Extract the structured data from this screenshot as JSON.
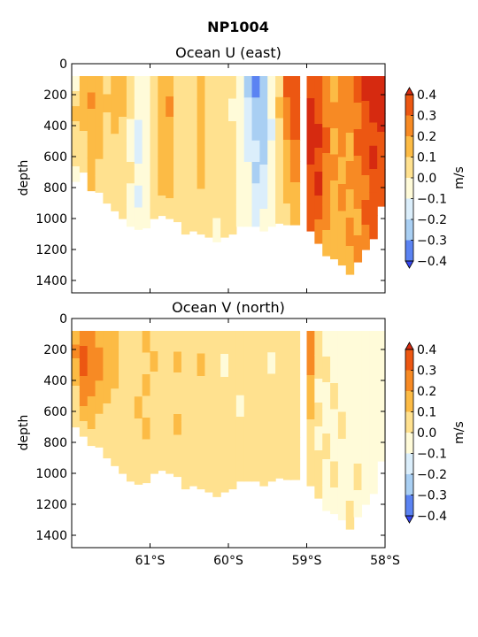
{
  "suptitle": "NP1004",
  "colors": {
    "levels": [
      -0.4,
      -0.3,
      -0.2,
      -0.1,
      0.0,
      0.1,
      0.2,
      0.3,
      0.4
    ],
    "fills": [
      "#3546f0",
      "#5b83f2",
      "#a9cff3",
      "#dbeefb",
      "#fffbd9",
      "#ffe18f",
      "#fcbb45",
      "#f78a24",
      "#ec5712",
      "#d62a10"
    ]
  },
  "colorbar": {
    "label": "m/s",
    "ticks": [
      "0.4",
      "0.3",
      "0.2",
      "0.1",
      "0.0",
      "−0.1",
      "−0.2",
      "−0.3",
      "−0.4"
    ]
  },
  "x_tick_labels": [
    "61°S",
    "60°S",
    "59°S",
    "58°S"
  ],
  "chart_data": [
    {
      "type": "heatmap",
      "title": "Ocean U (east)",
      "xlabel": "",
      "ylabel": "depth",
      "x_domain": [
        -62.0,
        -58.0
      ],
      "ylim": [
        1480,
        0
      ],
      "yticks": [
        "0",
        "200",
        "400",
        "600",
        "800",
        "1000",
        "1200",
        "1400"
      ],
      "columns": [
        {
          "lat": -61.95,
          "max_depth": 760,
          "v": [
            -0.05,
            0.05,
            0.1,
            0.05,
            0.0,
            0.0,
            -0.05
          ]
        },
        {
          "lat": -61.85,
          "max_depth": 700,
          "v": [
            0.15,
            0.1,
            0.15,
            0.1,
            0.05,
            0.05,
            0.05
          ]
        },
        {
          "lat": -61.75,
          "max_depth": 820,
          "v": [
            0.15,
            0.2,
            0.15,
            0.15,
            0.1,
            0.1,
            0.1
          ]
        },
        {
          "lat": -61.65,
          "max_depth": 830,
          "v": [
            0.1,
            0.15,
            0.1,
            0.15,
            0.1,
            0.05,
            0.05
          ]
        },
        {
          "lat": -61.55,
          "max_depth": 900,
          "v": [
            0.05,
            0.1,
            0.05,
            0.05,
            0.05,
            0.0,
            0.05
          ]
        },
        {
          "lat": -61.45,
          "max_depth": 950,
          "v": [
            0.1,
            0.15,
            0.1,
            0.05,
            0.0,
            0.05,
            0.05
          ]
        },
        {
          "lat": -61.35,
          "max_depth": 1000,
          "v": [
            0.15,
            0.1,
            0.05,
            0.05,
            0.05,
            0.0,
            0.0
          ]
        },
        {
          "lat": -61.25,
          "max_depth": 1050,
          "v": [
            0.05,
            0.0,
            -0.05,
            -0.05,
            0.0,
            -0.05,
            -0.05
          ]
        },
        {
          "lat": -61.15,
          "max_depth": 1070,
          "v": [
            -0.05,
            -0.1,
            -0.15,
            -0.15,
            -0.1,
            -0.15,
            -0.1
          ]
        },
        {
          "lat": -61.05,
          "max_depth": 1060,
          "v": [
            -0.05,
            -0.05,
            -0.1,
            -0.05,
            -0.05,
            -0.05,
            -0.05
          ]
        },
        {
          "lat": -60.95,
          "max_depth": 1000,
          "v": [
            0.0,
            0.05,
            0.05,
            0.0,
            0.05,
            0.05,
            0.0
          ]
        },
        {
          "lat": -60.85,
          "max_depth": 980,
          "v": [
            0.1,
            0.15,
            0.15,
            0.15,
            0.15,
            0.1,
            0.05
          ]
        },
        {
          "lat": -60.75,
          "max_depth": 1000,
          "v": [
            0.15,
            0.2,
            0.15,
            0.15,
            0.1,
            0.1,
            0.05
          ]
        },
        {
          "lat": -60.65,
          "max_depth": 1020,
          "v": [
            0.05,
            0.05,
            0.05,
            0.05,
            0.0,
            0.05,
            0.0
          ]
        },
        {
          "lat": -60.55,
          "max_depth": 1100,
          "v": [
            0.0,
            0.05,
            0.0,
            0.05,
            0.05,
            0.0,
            0.0
          ]
        },
        {
          "lat": -60.45,
          "max_depth": 1080,
          "v": [
            0.05,
            0.0,
            0.05,
            0.05,
            0.0,
            0.0,
            0.05
          ]
        },
        {
          "lat": -60.35,
          "max_depth": 1100,
          "v": [
            0.1,
            0.15,
            0.15,
            0.1,
            0.1,
            0.05,
            0.05
          ]
        },
        {
          "lat": -60.25,
          "max_depth": 1120,
          "v": [
            0.05,
            0.05,
            0.0,
            0.05,
            0.0,
            0.0,
            0.0
          ]
        },
        {
          "lat": -60.15,
          "max_depth": 1150,
          "v": [
            0.0,
            0.05,
            0.05,
            0.0,
            0.05,
            0.0,
            -0.05
          ]
        },
        {
          "lat": -60.05,
          "max_depth": 1120,
          "v": [
            0.05,
            0.0,
            0.05,
            0.05,
            0.0,
            0.05,
            0.0
          ]
        },
        {
          "lat": -59.95,
          "max_depth": 1100,
          "v": [
            0.0,
            -0.05,
            0.0,
            0.05,
            0.0,
            0.0,
            0.0
          ]
        },
        {
          "lat": -59.85,
          "max_depth": 1050,
          "v": [
            -0.05,
            -0.1,
            -0.1,
            -0.05,
            -0.05,
            -0.05,
            -0.05
          ]
        },
        {
          "lat": -59.75,
          "max_depth": 1050,
          "v": [
            -0.25,
            -0.2,
            -0.15,
            -0.15,
            -0.1,
            -0.1,
            -0.1
          ]
        },
        {
          "lat": -59.65,
          "max_depth": 1050,
          "v": [
            -0.35,
            -0.3,
            -0.25,
            -0.2,
            -0.25,
            -0.2,
            -0.15
          ]
        },
        {
          "lat": -59.55,
          "max_depth": 1080,
          "v": [
            -0.25,
            -0.25,
            -0.3,
            -0.3,
            -0.2,
            -0.15,
            -0.1
          ]
        },
        {
          "lat": -59.45,
          "max_depth": 1050,
          "v": [
            -0.05,
            -0.1,
            -0.15,
            -0.1,
            -0.05,
            -0.05,
            -0.05
          ]
        },
        {
          "lat": -59.35,
          "max_depth": 1030,
          "v": [
            0.05,
            0.1,
            0.05,
            0.05,
            0.0,
            0.05,
            0.05
          ]
        },
        {
          "lat": -59.25,
          "max_depth": 1040,
          "v": [
            0.3,
            0.25,
            0.2,
            0.15,
            0.1,
            0.1,
            0.05
          ]
        },
        {
          "lat": -59.15,
          "max_depth": 1040,
          "v": [
            0.35,
            0.3,
            0.35,
            0.25,
            0.2,
            0.15,
            0.1
          ]
        },
        {
          "lat": -58.95,
          "max_depth": 1080,
          "v": [
            0.35,
            0.4,
            0.4,
            0.4,
            0.35,
            0.35,
            0.3
          ]
        },
        {
          "lat": -58.85,
          "max_depth": 1160,
          "v": [
            0.3,
            0.35,
            0.4,
            0.35,
            0.4,
            0.35,
            0.25
          ]
        },
        {
          "lat": -58.75,
          "max_depth": 1240,
          "v": [
            0.2,
            0.25,
            0.3,
            0.25,
            0.2,
            0.2,
            0.15
          ]
        },
        {
          "lat": -58.65,
          "max_depth": 1260,
          "v": [
            0.15,
            0.2,
            0.15,
            0.2,
            0.15,
            0.1,
            0.15
          ]
        },
        {
          "lat": -58.55,
          "max_depth": 1300,
          "v": [
            0.2,
            0.25,
            0.2,
            0.15,
            0.2,
            0.15,
            0.1
          ]
        },
        {
          "lat": -58.45,
          "max_depth": 1360,
          "v": [
            0.25,
            0.2,
            0.15,
            0.2,
            0.15,
            0.2,
            0.15
          ]
        },
        {
          "lat": -58.35,
          "max_depth": 1280,
          "v": [
            0.3,
            0.25,
            0.3,
            0.2,
            0.25,
            0.15,
            0.2
          ]
        },
        {
          "lat": -58.25,
          "max_depth": 1200,
          "v": [
            0.4,
            0.35,
            0.3,
            0.3,
            0.25,
            0.3,
            0.25
          ]
        },
        {
          "lat": -58.15,
          "max_depth": 1130,
          "v": [
            0.4,
            0.4,
            0.35,
            0.4,
            0.35,
            0.3,
            0.3
          ]
        },
        {
          "lat": -58.05,
          "max_depth": 920,
          "v": [
            0.4,
            0.4,
            0.4,
            0.35,
            0.3,
            0.3,
            0.3
          ]
        }
      ]
    },
    {
      "type": "heatmap",
      "title": "Ocean V (north)",
      "xlabel": "",
      "ylabel": "depth",
      "x_domain": [
        -62.0,
        -58.0
      ],
      "ylim": [
        1480,
        0
      ],
      "yticks": [
        "0",
        "200",
        "400",
        "600",
        "800",
        "1000",
        "1200",
        "1400"
      ],
      "columns": [
        {
          "lat": -61.95,
          "max_depth": 700,
          "v": [
            0.15,
            0.2,
            0.15,
            0.1,
            0.05,
            0.05,
            0.0
          ]
        },
        {
          "lat": -61.85,
          "max_depth": 760,
          "v": [
            0.25,
            0.3,
            0.3,
            0.25,
            0.2,
            0.1,
            0.05
          ]
        },
        {
          "lat": -61.75,
          "max_depth": 820,
          "v": [
            0.2,
            0.25,
            0.25,
            0.2,
            0.15,
            0.1,
            0.05
          ]
        },
        {
          "lat": -61.65,
          "max_depth": 830,
          "v": [
            0.15,
            0.2,
            0.2,
            0.15,
            0.1,
            0.05,
            0.05
          ]
        },
        {
          "lat": -61.55,
          "max_depth": 900,
          "v": [
            0.1,
            0.15,
            0.1,
            0.1,
            0.05,
            0.05,
            0.05
          ]
        },
        {
          "lat": -61.45,
          "max_depth": 950,
          "v": [
            0.15,
            0.1,
            0.1,
            0.05,
            0.05,
            0.0,
            0.0
          ]
        },
        {
          "lat": -61.35,
          "max_depth": 1000,
          "v": [
            0.05,
            0.05,
            0.05,
            0.0,
            0.05,
            0.0,
            0.0
          ]
        },
        {
          "lat": -61.25,
          "max_depth": 1050,
          "v": [
            0.0,
            0.05,
            0.0,
            0.05,
            0.0,
            0.05,
            0.0
          ]
        },
        {
          "lat": -61.15,
          "max_depth": 1070,
          "v": [
            0.05,
            0.0,
            0.05,
            0.1,
            0.05,
            0.0,
            0.05
          ]
        },
        {
          "lat": -61.05,
          "max_depth": 1060,
          "v": [
            0.1,
            0.05,
            0.1,
            0.05,
            0.1,
            0.05,
            0.0
          ]
        },
        {
          "lat": -60.95,
          "max_depth": 1000,
          "v": [
            0.05,
            0.1,
            0.05,
            0.05,
            0.05,
            0.0,
            0.05
          ]
        },
        {
          "lat": -60.85,
          "max_depth": 980,
          "v": [
            0.0,
            0.05,
            0.05,
            0.0,
            0.05,
            0.05,
            0.0
          ]
        },
        {
          "lat": -60.75,
          "max_depth": 1000,
          "v": [
            0.05,
            0.05,
            0.0,
            0.05,
            0.0,
            0.0,
            0.05
          ]
        },
        {
          "lat": -60.65,
          "max_depth": 1020,
          "v": [
            0.05,
            0.1,
            0.05,
            0.05,
            0.1,
            0.05,
            0.05
          ]
        },
        {
          "lat": -60.55,
          "max_depth": 1100,
          "v": [
            0.0,
            0.05,
            0.05,
            0.05,
            0.0,
            0.05,
            0.0
          ]
        },
        {
          "lat": -60.45,
          "max_depth": 1080,
          "v": [
            0.05,
            0.0,
            0.05,
            0.05,
            0.05,
            0.0,
            0.0
          ]
        },
        {
          "lat": -60.35,
          "max_depth": 1100,
          "v": [
            0.05,
            0.1,
            0.05,
            0.05,
            0.05,
            0.05,
            0.0
          ]
        },
        {
          "lat": -60.25,
          "max_depth": 1120,
          "v": [
            0.0,
            0.05,
            0.0,
            0.05,
            0.0,
            0.0,
            0.05
          ]
        },
        {
          "lat": -60.15,
          "max_depth": 1150,
          "v": [
            0.05,
            0.0,
            0.05,
            0.0,
            0.05,
            0.0,
            0.0
          ]
        },
        {
          "lat": -60.05,
          "max_depth": 1120,
          "v": [
            0.0,
            -0.05,
            0.0,
            0.05,
            0.0,
            0.05,
            0.0
          ]
        },
        {
          "lat": -59.95,
          "max_depth": 1100,
          "v": [
            0.05,
            0.0,
            0.05,
            0.0,
            0.0,
            0.05,
            0.05
          ]
        },
        {
          "lat": -59.85,
          "max_depth": 1050,
          "v": [
            0.0,
            0.05,
            0.0,
            -0.05,
            0.0,
            0.0,
            0.0
          ]
        },
        {
          "lat": -59.75,
          "max_depth": 1050,
          "v": [
            0.0,
            0.0,
            0.05,
            0.0,
            0.05,
            0.0,
            0.0
          ]
        },
        {
          "lat": -59.65,
          "max_depth": 1050,
          "v": [
            0.05,
            0.0,
            0.0,
            0.05,
            0.0,
            0.0,
            0.0
          ]
        },
        {
          "lat": -59.55,
          "max_depth": 1080,
          "v": [
            0.0,
            0.05,
            0.0,
            0.0,
            0.05,
            0.0,
            0.0
          ]
        },
        {
          "lat": -59.45,
          "max_depth": 1050,
          "v": [
            0.0,
            -0.05,
            0.0,
            0.0,
            0.0,
            0.05,
            0.0
          ]
        },
        {
          "lat": -59.35,
          "max_depth": 1030,
          "v": [
            0.05,
            0.0,
            0.05,
            0.0,
            0.0,
            0.0,
            0.05
          ]
        },
        {
          "lat": -59.25,
          "max_depth": 1040,
          "v": [
            0.0,
            0.0,
            0.0,
            0.05,
            0.0,
            0.0,
            0.0
          ]
        },
        {
          "lat": -59.15,
          "max_depth": 1040,
          "v": [
            0.0,
            0.05,
            0.0,
            0.0,
            0.0,
            0.0,
            0.0
          ]
        },
        {
          "lat": -58.95,
          "max_depth": 1080,
          "v": [
            0.25,
            0.2,
            0.15,
            0.1,
            0.05,
            0.0,
            0.0
          ]
        },
        {
          "lat": -58.85,
          "max_depth": 1160,
          "v": [
            0.0,
            0.0,
            -0.05,
            0.0,
            -0.05,
            0.0,
            0.0
          ]
        },
        {
          "lat": -58.75,
          "max_depth": 1240,
          "v": [
            -0.05,
            0.0,
            -0.05,
            -0.05,
            0.0,
            -0.05,
            -0.05
          ]
        },
        {
          "lat": -58.65,
          "max_depth": 1260,
          "v": [
            -0.05,
            -0.05,
            0.0,
            -0.05,
            -0.05,
            0.0,
            -0.05
          ]
        },
        {
          "lat": -58.55,
          "max_depth": 1300,
          "v": [
            -0.05,
            -0.05,
            -0.05,
            0.0,
            -0.05,
            -0.05,
            -0.05
          ]
        },
        {
          "lat": -58.45,
          "max_depth": 1360,
          "v": [
            -0.05,
            -0.1,
            -0.05,
            -0.05,
            -0.05,
            -0.05,
            0.0
          ]
        },
        {
          "lat": -58.35,
          "max_depth": 1280,
          "v": [
            -0.05,
            -0.05,
            -0.1,
            -0.05,
            -0.05,
            0.0,
            -0.05
          ]
        },
        {
          "lat": -58.25,
          "max_depth": 1200,
          "v": [
            -0.05,
            -0.05,
            -0.05,
            -0.05,
            -0.1,
            -0.05,
            -0.05
          ]
        },
        {
          "lat": -58.15,
          "max_depth": 1130,
          "v": [
            -0.05,
            -0.05,
            -0.05,
            -0.1,
            -0.05,
            -0.05,
            -0.05
          ]
        },
        {
          "lat": -58.05,
          "max_depth": 920,
          "v": [
            -0.05,
            -0.1,
            -0.05,
            -0.05,
            -0.05,
            -0.05,
            -0.05
          ]
        }
      ]
    }
  ]
}
